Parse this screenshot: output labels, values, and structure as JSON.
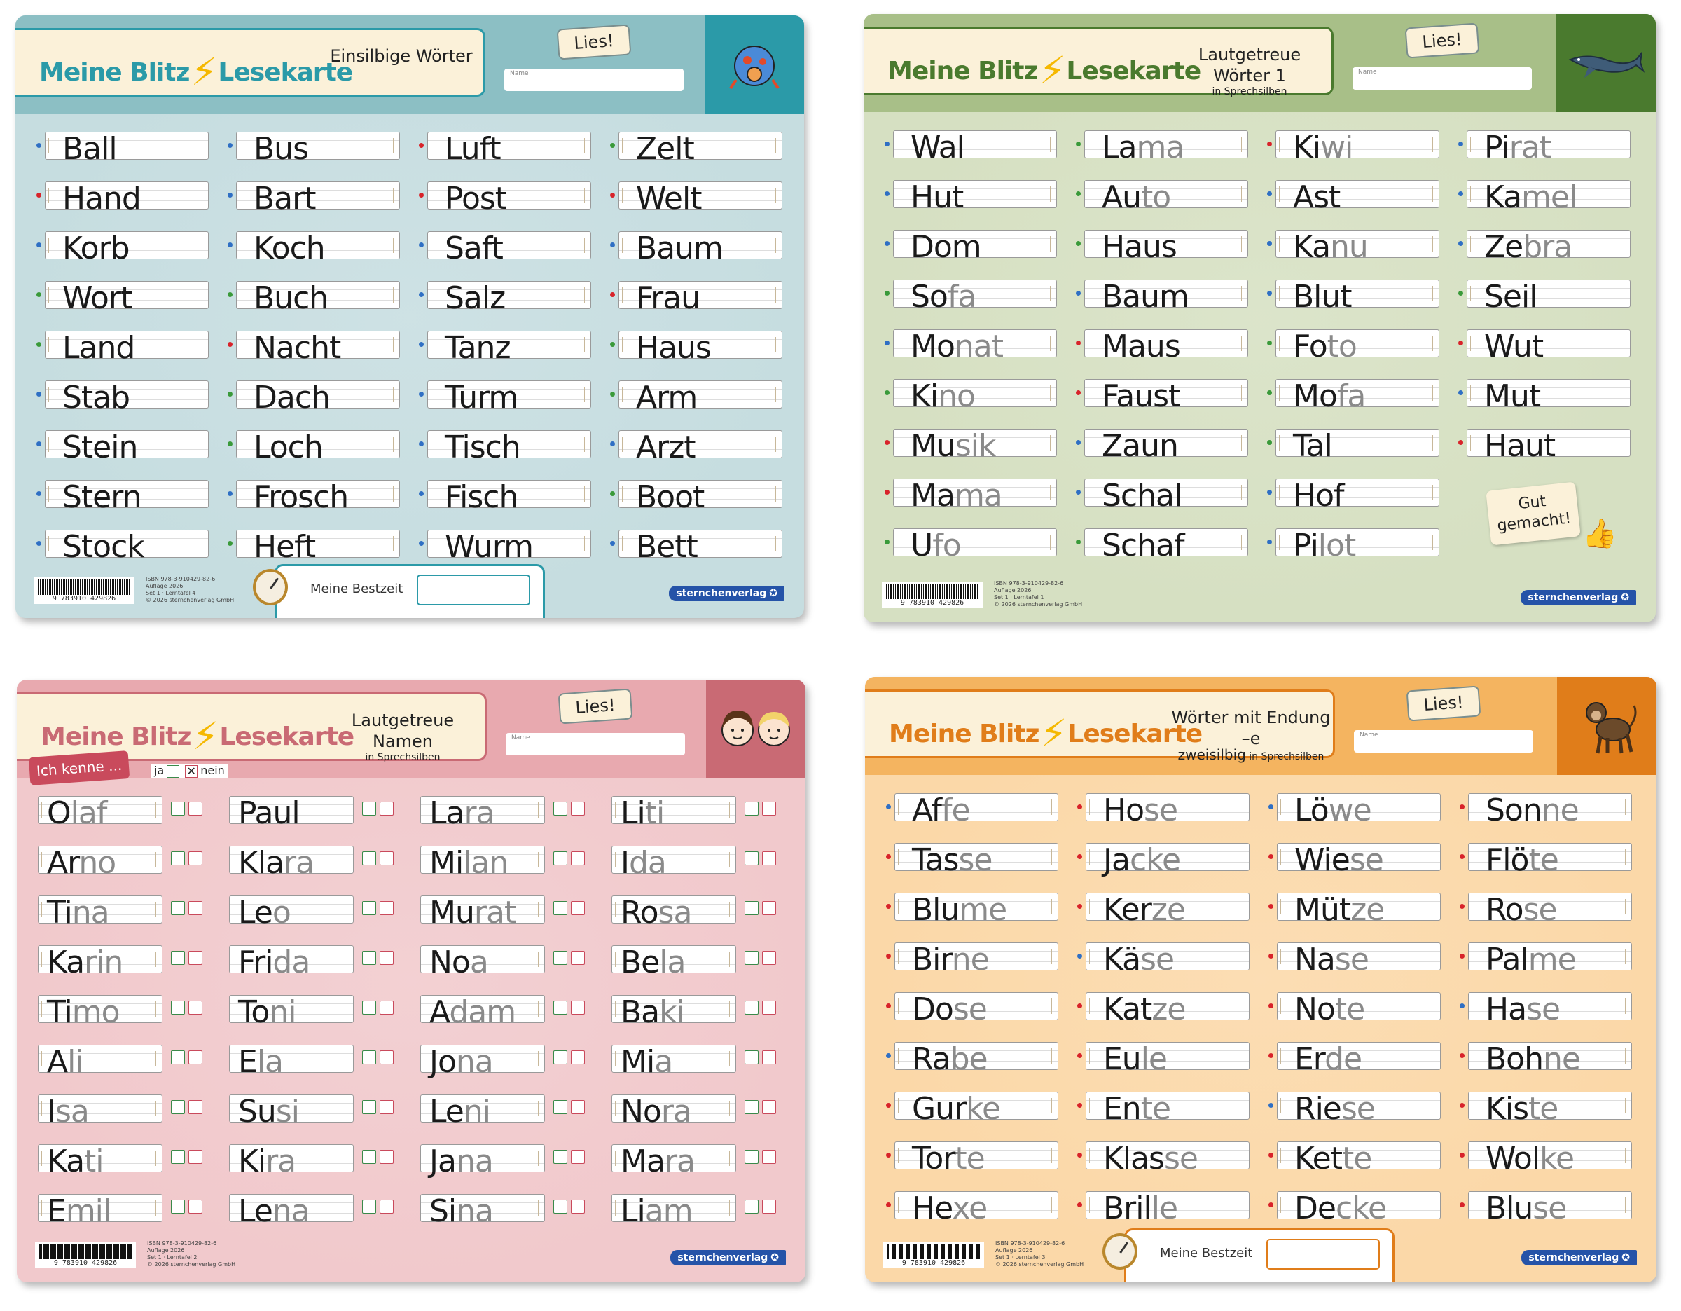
{
  "cards": [
    {
      "brand": "Meine Blitz⚡Lesekarte",
      "title": "Einsilbige Wörter",
      "subtitle": "",
      "lies": "Lies!",
      "name_label": "Name",
      "icon": "ball-creature-icon",
      "colors": {
        "bg": "#c6dde0",
        "accent": "#2b9aa8",
        "band": "#8cbfc4"
      },
      "columns": [
        [
          {
            "w": "Ball",
            "dot": "blue"
          },
          {
            "w": "Hand",
            "dot": "red"
          },
          {
            "w": "Korb",
            "dot": "blue"
          },
          {
            "w": "Wort",
            "dot": "green"
          },
          {
            "w": "Land",
            "dot": "green"
          },
          {
            "w": "Stab",
            "dot": "blue"
          },
          {
            "w": "Stein",
            "dot": "blue"
          },
          {
            "w": "Stern",
            "dot": "blue"
          },
          {
            "w": "Stock",
            "dot": "blue"
          }
        ],
        [
          {
            "w": "Bus",
            "dot": "blue"
          },
          {
            "w": "Bart",
            "dot": "blue"
          },
          {
            "w": "Koch",
            "dot": "blue"
          },
          {
            "w": "Buch",
            "dot": "green"
          },
          {
            "w": "Nacht",
            "dot": "red"
          },
          {
            "w": "Dach",
            "dot": "green"
          },
          {
            "w": "Loch",
            "dot": "green"
          },
          {
            "w": "Frosch",
            "dot": "blue"
          },
          {
            "w": "Heft",
            "dot": "green"
          }
        ],
        [
          {
            "w": "Luft",
            "dot": "red"
          },
          {
            "w": "Post",
            "dot": "red"
          },
          {
            "w": "Saft",
            "dot": "blue"
          },
          {
            "w": "Salz",
            "dot": "blue"
          },
          {
            "w": "Tanz",
            "dot": "blue"
          },
          {
            "w": "Turm",
            "dot": "blue"
          },
          {
            "w": "Tisch",
            "dot": "blue"
          },
          {
            "w": "Fisch",
            "dot": "blue"
          },
          {
            "w": "Wurm",
            "dot": "blue"
          }
        ],
        [
          {
            "w": "Zelt",
            "dot": "green"
          },
          {
            "w": "Welt",
            "dot": "red"
          },
          {
            "w": "Baum",
            "dot": "blue"
          },
          {
            "w": "Frau",
            "dot": "red"
          },
          {
            "w": "Haus",
            "dot": "green"
          },
          {
            "w": "Arm",
            "dot": "green"
          },
          {
            "w": "Arzt",
            "dot": "blue"
          },
          {
            "w": "Boot",
            "dot": "green"
          },
          {
            "w": "Bett",
            "dot": "blue"
          }
        ]
      ],
      "footer": {
        "barcode": "9 783910 429826",
        "isbn_lines": [
          "ISBN 978-3-910429-82-6",
          "Auflage 2026",
          "Set 1 · Lerntafel 4",
          "© 2026 sternchenverlag GmbH"
        ],
        "bestzeit": "Meine Bestzeit",
        "publisher": "sternchenverlag"
      }
    },
    {
      "brand": "Meine Blitz⚡Lesekarte",
      "title": "Lautgetreue Wörter 1",
      "subtitle": "in Sprechsilben",
      "lies": "Lies!",
      "name_label": "Name",
      "icon": "whale-icon",
      "colors": {
        "bg": "#d6e0c2",
        "accent": "#4a7a2e",
        "band": "#a8bf88"
      },
      "columns": [
        [
          {
            "w": "Wal",
            "s": "",
            "dot": "blue"
          },
          {
            "w": "Hut",
            "s": "",
            "dot": "blue"
          },
          {
            "w": "Dom",
            "s": "",
            "dot": "blue"
          },
          {
            "w": "So",
            "s": "fa",
            "dot": "green"
          },
          {
            "w": "Mo",
            "s": "nat",
            "dot": "blue"
          },
          {
            "w": "Ki",
            "s": "no",
            "dot": "green"
          },
          {
            "w": "Mu",
            "s": "sik",
            "dot": "red"
          },
          {
            "w": "Ma",
            "s": "ma",
            "dot": "red"
          },
          {
            "w": "U",
            "s": "fo",
            "dot": "green"
          }
        ],
        [
          {
            "w": "La",
            "s": "ma",
            "dot": "green"
          },
          {
            "w": "Au",
            "s": "to",
            "dot": "green"
          },
          {
            "w": "Haus",
            "s": "",
            "dot": "green"
          },
          {
            "w": "Baum",
            "s": "",
            "dot": "blue"
          },
          {
            "w": "Maus",
            "s": "",
            "dot": "red"
          },
          {
            "w": "Faust",
            "s": "",
            "dot": "red"
          },
          {
            "w": "Zaun",
            "s": "",
            "dot": "blue"
          },
          {
            "w": "Schal",
            "s": "",
            "dot": "blue"
          },
          {
            "w": "Schaf",
            "s": "",
            "dot": "green"
          }
        ],
        [
          {
            "w": "Ki",
            "s": "wi",
            "dot": "red"
          },
          {
            "w": "Ast",
            "s": "",
            "dot": "blue"
          },
          {
            "w": "Ka",
            "s": "nu",
            "dot": "blue"
          },
          {
            "w": "Blut",
            "s": "",
            "dot": "blue"
          },
          {
            "w": "Fo",
            "s": "to",
            "dot": "green"
          },
          {
            "w": "Mo",
            "s": "fa",
            "dot": "green"
          },
          {
            "w": "Tal",
            "s": "",
            "dot": "green"
          },
          {
            "w": "Hof",
            "s": "",
            "dot": "blue"
          },
          {
            "w": "Pi",
            "s": "lot",
            "dot": "blue"
          }
        ],
        [
          {
            "w": "Pi",
            "s": "rat",
            "dot": "blue"
          },
          {
            "w": "Ka",
            "s": "mel",
            "dot": "blue"
          },
          {
            "w": "Ze",
            "s": "bra",
            "dot": "blue"
          },
          {
            "w": "Seil",
            "s": "",
            "dot": "green"
          },
          {
            "w": "Wut",
            "s": "",
            "dot": "red"
          },
          {
            "w": "Mut",
            "s": "",
            "dot": "blue"
          },
          {
            "w": "Haut",
            "s": "",
            "dot": "red"
          }
        ]
      ],
      "good_badge": [
        "Gut",
        "gemacht!"
      ],
      "footer": {
        "barcode": "9 783910 429826",
        "isbn_lines": [
          "ISBN 978-3-910429-82-6",
          "Auflage 2026",
          "Set 1 · Lerntafel 1",
          "© 2026 sternchenverlag GmbH"
        ],
        "publisher": "sternchenverlag"
      }
    },
    {
      "brand": "Meine Blitz⚡Lesekarte",
      "title": "Lautgetreue Namen",
      "subtitle": "in Sprechsilben",
      "lies": "Lies!",
      "name_label": "Name",
      "icon": "two-children-faces-icon",
      "colors": {
        "bg": "#f1c9cc",
        "accent": "#c96a74",
        "band": "#e8a9af"
      },
      "ich_kenne": "Ich kenne ...",
      "ja": "ja",
      "nein": "nein",
      "columns": [
        [
          {
            "w": "O",
            "s": "laf"
          },
          {
            "w": "Ar",
            "s": "no"
          },
          {
            "w": "Ti",
            "s": "na"
          },
          {
            "w": "Ka",
            "s": "rin"
          },
          {
            "w": "Ti",
            "s": "mo"
          },
          {
            "w": "A",
            "s": "li"
          },
          {
            "w": "I",
            "s": "sa"
          },
          {
            "w": "Ka",
            "s": "ti"
          },
          {
            "w": "E",
            "s": "mil"
          }
        ],
        [
          {
            "w": "Paul",
            "s": ""
          },
          {
            "w": "Kla",
            "s": "ra"
          },
          {
            "w": "Le",
            "s": "o"
          },
          {
            "w": "Fri",
            "s": "da"
          },
          {
            "w": "To",
            "s": "ni"
          },
          {
            "w": "E",
            "s": "la"
          },
          {
            "w": "Su",
            "s": "si"
          },
          {
            "w": "Ki",
            "s": "ra"
          },
          {
            "w": "Le",
            "s": "na"
          }
        ],
        [
          {
            "w": "La",
            "s": "ra"
          },
          {
            "w": "Mi",
            "s": "lan"
          },
          {
            "w": "Mu",
            "s": "rat"
          },
          {
            "w": "No",
            "s": "a"
          },
          {
            "w": "A",
            "s": "dam"
          },
          {
            "w": "Jo",
            "s": "na"
          },
          {
            "w": "Le",
            "s": "ni"
          },
          {
            "w": "Ja",
            "s": "na"
          },
          {
            "w": "Si",
            "s": "na"
          }
        ],
        [
          {
            "w": "Li",
            "s": "ti"
          },
          {
            "w": "I",
            "s": "da"
          },
          {
            "w": "Ro",
            "s": "sa"
          },
          {
            "w": "Be",
            "s": "la"
          },
          {
            "w": "Ba",
            "s": "ki"
          },
          {
            "w": "Mi",
            "s": "a"
          },
          {
            "w": "No",
            "s": "ra"
          },
          {
            "w": "Ma",
            "s": "ra"
          },
          {
            "w": "Li",
            "s": "am"
          }
        ]
      ],
      "footer": {
        "barcode": "9 783910 429826",
        "isbn_lines": [
          "ISBN 978-3-910429-82-6",
          "Auflage 2026",
          "Set 1 · Lerntafel 2",
          "© 2026 sternchenverlag GmbH"
        ],
        "publisher": "sternchenverlag"
      }
    },
    {
      "brand": "Meine Blitz⚡Lesekarte",
      "title": "Wörter mit Endung –e",
      "subtitle_main": "zweisilbig",
      "subtitle": "in Sprechsilben",
      "lies": "Lies!",
      "name_label": "Name",
      "icon": "monkey-icon",
      "colors": {
        "bg": "#fbd8a8",
        "accent": "#e07d1a",
        "band": "#f4b460"
      },
      "columns": [
        [
          {
            "w": "Af",
            "s": "fe",
            "dot": "blue"
          },
          {
            "w": "Tas",
            "s": "se",
            "dot": "red"
          },
          {
            "w": "Blu",
            "s": "me",
            "dot": "red"
          },
          {
            "w": "Bir",
            "s": "ne",
            "dot": "red"
          },
          {
            "w": "Do",
            "s": "se",
            "dot": "red"
          },
          {
            "w": "Ra",
            "s": "be",
            "dot": "blue"
          },
          {
            "w": "Gur",
            "s": "ke",
            "dot": "red"
          },
          {
            "w": "Tor",
            "s": "te",
            "dot": "red"
          },
          {
            "w": "He",
            "s": "xe",
            "dot": "red"
          }
        ],
        [
          {
            "w": "Ho",
            "s": "se",
            "dot": "red"
          },
          {
            "w": "Ja",
            "s": "cke",
            "dot": "red"
          },
          {
            "w": "Ker",
            "s": "ze",
            "dot": "red"
          },
          {
            "w": "Kä",
            "s": "se",
            "dot": "blue"
          },
          {
            "w": "Kat",
            "s": "ze",
            "dot": "red"
          },
          {
            "w": "Eu",
            "s": "le",
            "dot": "red"
          },
          {
            "w": "En",
            "s": "te",
            "dot": "red"
          },
          {
            "w": "Klas",
            "s": "se",
            "dot": "red"
          },
          {
            "w": "Bril",
            "s": "le",
            "dot": "red"
          }
        ],
        [
          {
            "w": "Lö",
            "s": "we",
            "dot": "blue"
          },
          {
            "w": "Wie",
            "s": "se",
            "dot": "red"
          },
          {
            "w": "Müt",
            "s": "ze",
            "dot": "red"
          },
          {
            "w": "Na",
            "s": "se",
            "dot": "red"
          },
          {
            "w": "No",
            "s": "te",
            "dot": "red"
          },
          {
            "w": "Er",
            "s": "de",
            "dot": "red"
          },
          {
            "w": "Rie",
            "s": "se",
            "dot": "blue"
          },
          {
            "w": "Ket",
            "s": "te",
            "dot": "red"
          },
          {
            "w": "De",
            "s": "cke",
            "dot": "red"
          }
        ],
        [
          {
            "w": "Son",
            "s": "ne",
            "dot": "red"
          },
          {
            "w": "Flö",
            "s": "te",
            "dot": "red"
          },
          {
            "w": "Ro",
            "s": "se",
            "dot": "red"
          },
          {
            "w": "Pal",
            "s": "me",
            "dot": "red"
          },
          {
            "w": "Ha",
            "s": "se",
            "dot": "blue"
          },
          {
            "w": "Boh",
            "s": "ne",
            "dot": "red"
          },
          {
            "w": "Kis",
            "s": "te",
            "dot": "red"
          },
          {
            "w": "Wol",
            "s": "ke",
            "dot": "red"
          },
          {
            "w": "Blu",
            "s": "se",
            "dot": "red"
          }
        ]
      ],
      "footer": {
        "barcode": "9 783910 429826",
        "isbn_lines": [
          "ISBN 978-3-910429-82-6",
          "Auflage 2026",
          "Set 1 · Lerntafel 3",
          "© 2026 sternchenverlag GmbH"
        ],
        "bestzeit": "Meine Bestzeit",
        "publisher": "sternchenverlag"
      }
    }
  ],
  "dot_colors": {
    "blue": "#2f6fc4",
    "red": "#d8232a",
    "green": "#3a9a3a"
  }
}
